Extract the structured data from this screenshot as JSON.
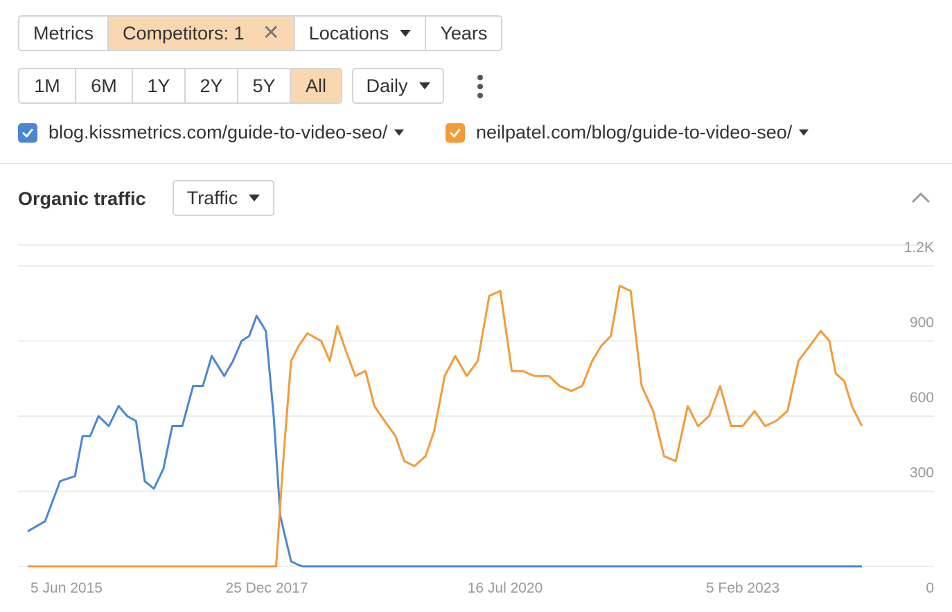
{
  "toolbar": {
    "metrics_label": "Metrics",
    "competitors_label": "Competitors: 1",
    "locations_label": "Locations",
    "years_label": "Years"
  },
  "periods": [
    "1M",
    "6M",
    "1Y",
    "2Y",
    "5Y",
    "All"
  ],
  "active_period": "All",
  "granularity": "Daily",
  "series_toggles": [
    {
      "label": "blog.kissmetrics.com/guide-to-video-seo/",
      "color": "#4a86d4",
      "checked": true
    },
    {
      "label": "neilpatel.com/blog/guide-to-video-seo/",
      "color": "#f29b37",
      "checked": true
    }
  ],
  "section": {
    "title": "Organic traffic",
    "metric_select": "Traffic"
  },
  "icons": {
    "remove": "close-icon",
    "dropdown": "caret-down-icon",
    "more": "more-vertical-icon",
    "collapse": "chevron-up-icon",
    "check": "check-icon"
  },
  "chart_data": {
    "type": "line",
    "x_tick_labels": [
      "5 Jun 2015",
      "25 Dec 2017",
      "16 Jul 2020",
      "5 Feb 2023"
    ],
    "y_tick_labels": [
      "0",
      "300",
      "600",
      "900",
      "1.2K"
    ],
    "ylim": [
      0,
      1200
    ],
    "grid": true,
    "x_range": [
      "2015-06-05",
      "2024-09-30"
    ],
    "series": [
      {
        "name": "blog.kissmetrics.com/guide-to-video-seo/",
        "color": "#4a86d4",
        "x": [
          "2015-06-05",
          "2015-08-15",
          "2015-10-15",
          "2015-12-15",
          "2016-01-15",
          "2016-02-15",
          "2016-03-20",
          "2016-05-01",
          "2016-06-10",
          "2016-07-15",
          "2016-08-20",
          "2016-09-25",
          "2016-11-01",
          "2016-12-10",
          "2017-01-15",
          "2017-02-25",
          "2017-04-10",
          "2017-05-20",
          "2017-06-25",
          "2017-08-15",
          "2017-09-20",
          "2017-10-25",
          "2017-11-25",
          "2017-12-25",
          "2018-02-01",
          "2018-03-05",
          "2018-04-01",
          "2018-05-15",
          "2018-06-15",
          "2018-07-01",
          "2018-08-15",
          "2024-09-30"
        ],
        "y": [
          140,
          180,
          340,
          360,
          520,
          520,
          600,
          560,
          640,
          600,
          580,
          340,
          310,
          390,
          560,
          560,
          720,
          720,
          840,
          760,
          820,
          900,
          920,
          1000,
          940,
          600,
          200,
          20,
          5,
          0,
          0,
          0
        ]
      },
      {
        "name": "neilpatel.com/blog/guide-to-video-seo/",
        "color": "#f29b37",
        "x": [
          "2015-06-05",
          "2018-03-15",
          "2018-04-15",
          "2018-05-15",
          "2018-06-15",
          "2018-07-20",
          "2018-09-15",
          "2018-10-20",
          "2018-11-20",
          "2018-12-25",
          "2019-02-01",
          "2019-03-15",
          "2019-04-20",
          "2019-06-01",
          "2019-07-15",
          "2019-08-20",
          "2019-10-01",
          "2019-11-15",
          "2019-12-20",
          "2020-02-01",
          "2020-03-15",
          "2020-05-01",
          "2020-06-15",
          "2020-08-01",
          "2020-09-15",
          "2020-11-01",
          "2020-12-15",
          "2021-02-01",
          "2021-04-01",
          "2021-05-15",
          "2021-07-01",
          "2021-08-15",
          "2021-09-25",
          "2021-11-01",
          "2021-12-10",
          "2022-01-15",
          "2022-03-01",
          "2022-04-15",
          "2022-06-01",
          "2022-07-15",
          "2022-09-01",
          "2022-10-20",
          "2022-12-01",
          "2023-01-15",
          "2023-03-01",
          "2023-04-15",
          "2023-06-01",
          "2023-07-20",
          "2023-09-01",
          "2023-10-15",
          "2023-12-01",
          "2024-01-15",
          "2024-03-01",
          "2024-04-15",
          "2024-05-20",
          "2024-06-15",
          "2024-07-20",
          "2024-08-20",
          "2024-09-30"
        ],
        "y": [
          0,
          0,
          450,
          820,
          880,
          930,
          900,
          820,
          960,
          860,
          760,
          780,
          640,
          580,
          520,
          420,
          400,
          440,
          540,
          760,
          840,
          760,
          820,
          1080,
          1100,
          780,
          780,
          760,
          760,
          720,
          700,
          720,
          820,
          880,
          920,
          1120,
          1100,
          720,
          620,
          440,
          420,
          640,
          560,
          600,
          720,
          560,
          560,
          620,
          560,
          580,
          620,
          820,
          880,
          940,
          900,
          770,
          740,
          640,
          560
        ]
      }
    ]
  }
}
